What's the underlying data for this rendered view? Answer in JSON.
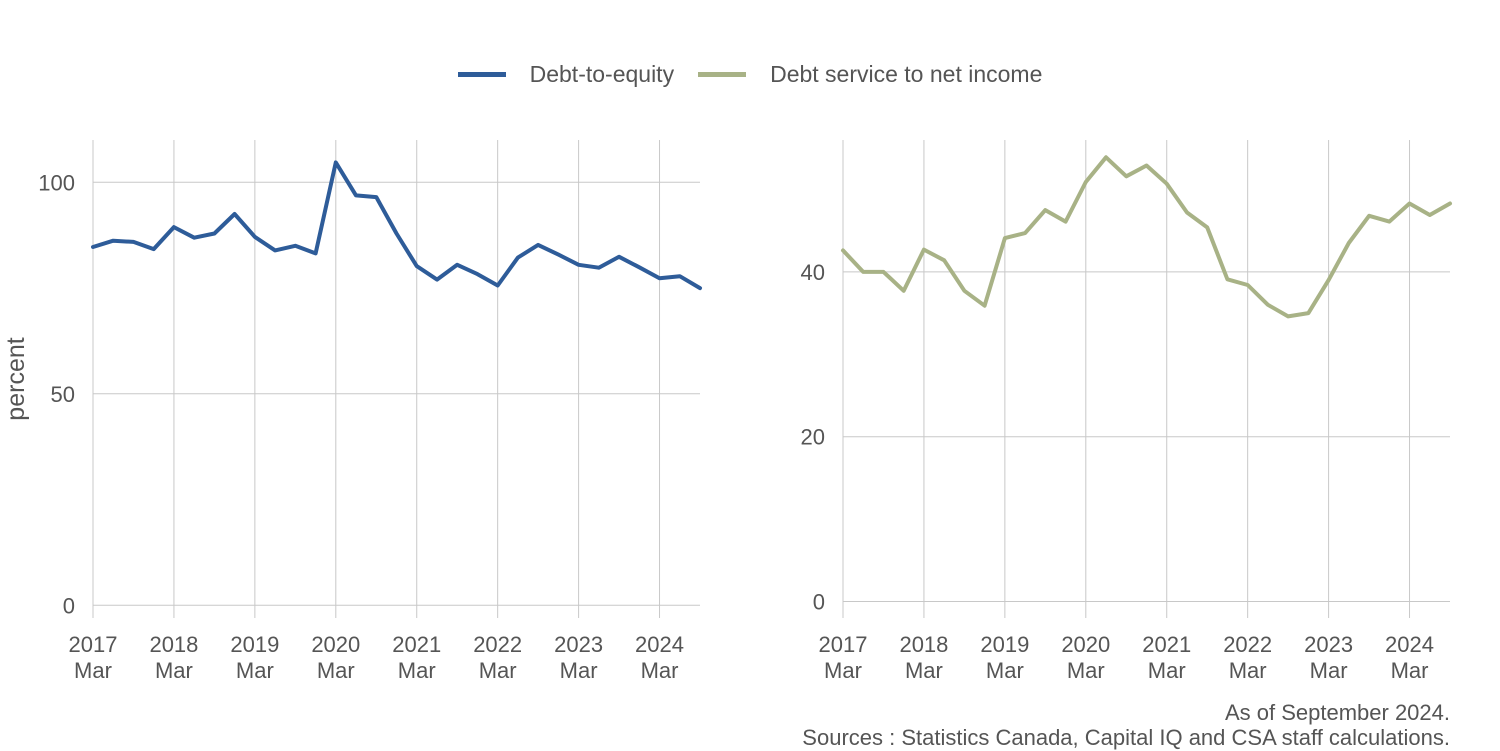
{
  "legend": {
    "items": [
      {
        "label": "Debt-to-equity",
        "color": "#2e5c99"
      },
      {
        "label": "Debt service to net income",
        "color": "#a8b286"
      }
    ]
  },
  "chart_data": [
    {
      "type": "line",
      "name": "left-panel",
      "ylabel": "percent",
      "ylim": [
        -3,
        110
      ],
      "yticks": [
        0,
        50,
        100
      ],
      "xlim": [
        0,
        30
      ],
      "x_ticks": [
        {
          "q": 0,
          "year": "2017",
          "month": "Mar"
        },
        {
          "q": 4,
          "year": "2018",
          "month": "Mar"
        },
        {
          "q": 8,
          "year": "2019",
          "month": "Mar"
        },
        {
          "q": 12,
          "year": "2020",
          "month": "Mar"
        },
        {
          "q": 16,
          "year": "2021",
          "month": "Mar"
        },
        {
          "q": 20,
          "year": "2022",
          "month": "Mar"
        },
        {
          "q": 24,
          "year": "2023",
          "month": "Mar"
        },
        {
          "q": 28,
          "year": "2024",
          "month": "Mar"
        }
      ],
      "series": [
        {
          "name": "Debt-to-equity",
          "color": "#2e5c99",
          "values": [
            84.7,
            86.2,
            85.9,
            84.2,
            89.4,
            86.9,
            87.9,
            92.5,
            87.1,
            83.9,
            85.0,
            83.2,
            104.7,
            96.9,
            96.5,
            87.9,
            80.2,
            77.0,
            80.5,
            78.3,
            75.6,
            82.2,
            85.2,
            82.9,
            80.5,
            79.8,
            82.4,
            79.9,
            77.3,
            77.8,
            75.0
          ]
        }
      ]
    },
    {
      "type": "line",
      "name": "right-panel",
      "ylabel": "",
      "ylim": [
        -2,
        56
      ],
      "yticks": [
        0,
        20,
        40
      ],
      "xlim": [
        0,
        30
      ],
      "x_ticks": [
        {
          "q": 0,
          "year": "2017",
          "month": "Mar"
        },
        {
          "q": 4,
          "year": "2018",
          "month": "Mar"
        },
        {
          "q": 8,
          "year": "2019",
          "month": "Mar"
        },
        {
          "q": 12,
          "year": "2020",
          "month": "Mar"
        },
        {
          "q": 16,
          "year": "2021",
          "month": "Mar"
        },
        {
          "q": 20,
          "year": "2022",
          "month": "Mar"
        },
        {
          "q": 24,
          "year": "2023",
          "month": "Mar"
        },
        {
          "q": 28,
          "year": "2024",
          "month": "Mar"
        }
      ],
      "series": [
        {
          "name": "Debt service to net income",
          "color": "#a8b286",
          "values": [
            42.6,
            40.0,
            40.0,
            37.7,
            42.7,
            41.4,
            37.7,
            35.9,
            44.1,
            44.7,
            47.5,
            46.1,
            50.9,
            53.9,
            51.6,
            52.9,
            50.7,
            47.2,
            45.4,
            39.1,
            38.4,
            36.0,
            34.6,
            35.0,
            39.0,
            43.5,
            46.8,
            46.1,
            48.3,
            46.9,
            48.3
          ]
        }
      ]
    }
  ],
  "footnotes": {
    "as_of": "As of September 2024.",
    "sources": "Sources : Statistics Canada, Capital IQ and CSA staff calculations."
  }
}
